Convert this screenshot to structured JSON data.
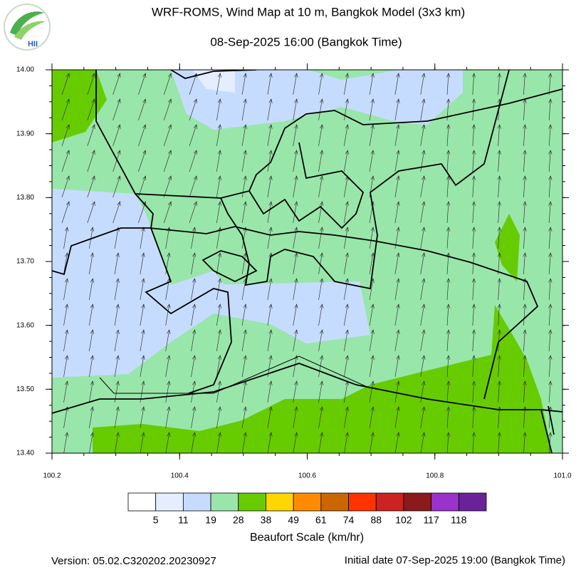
{
  "header": {
    "title": "WRF-ROMS, Wind Map at 10 m, Bangkok Model (3x3 km)",
    "subtitle": "08-Sep-2025 16:00 (Bangkok Time)",
    "logo": "HII"
  },
  "map": {
    "xlim": [
      100.2,
      101.0
    ],
    "ylim": [
      13.4,
      14.0
    ],
    "xticks": [
      {
        "value": 100.2,
        "label": "100.2"
      },
      {
        "value": 100.4,
        "label": "100.4"
      },
      {
        "value": 100.6,
        "label": "100.6"
      },
      {
        "value": 100.8,
        "label": "100.8"
      },
      {
        "value": 101.0,
        "label": "101.0"
      }
    ],
    "yticks": [
      {
        "value": 13.4,
        "label": "13.40"
      },
      {
        "value": 13.5,
        "label": "13.50"
      },
      {
        "value": 13.6,
        "label": "13.60"
      },
      {
        "value": 13.7,
        "label": "13.70"
      },
      {
        "value": 13.8,
        "label": "13.80"
      },
      {
        "value": 13.9,
        "label": "13.90"
      },
      {
        "value": 14.0,
        "label": "14.00"
      }
    ]
  },
  "colorbar": {
    "title": "Beaufort Scale (km/hr)",
    "colors": [
      "#ffffff",
      "#e4eeff",
      "#c6dcff",
      "#99e6aa",
      "#66cc00",
      "#ffd700",
      "#ff8c00",
      "#cc6600",
      "#ff3300",
      "#cc2222",
      "#8b1a1a",
      "#9933cc",
      "#6a2299"
    ],
    "labels": [
      5,
      11,
      19,
      28,
      38,
      49,
      61,
      74,
      88,
      102,
      117,
      118
    ]
  },
  "footer": {
    "version": "Version: 05.02.C320202.20230927",
    "initial": "Initial date 07-Sep-2025 19:00 (Bangkok Time)"
  }
}
